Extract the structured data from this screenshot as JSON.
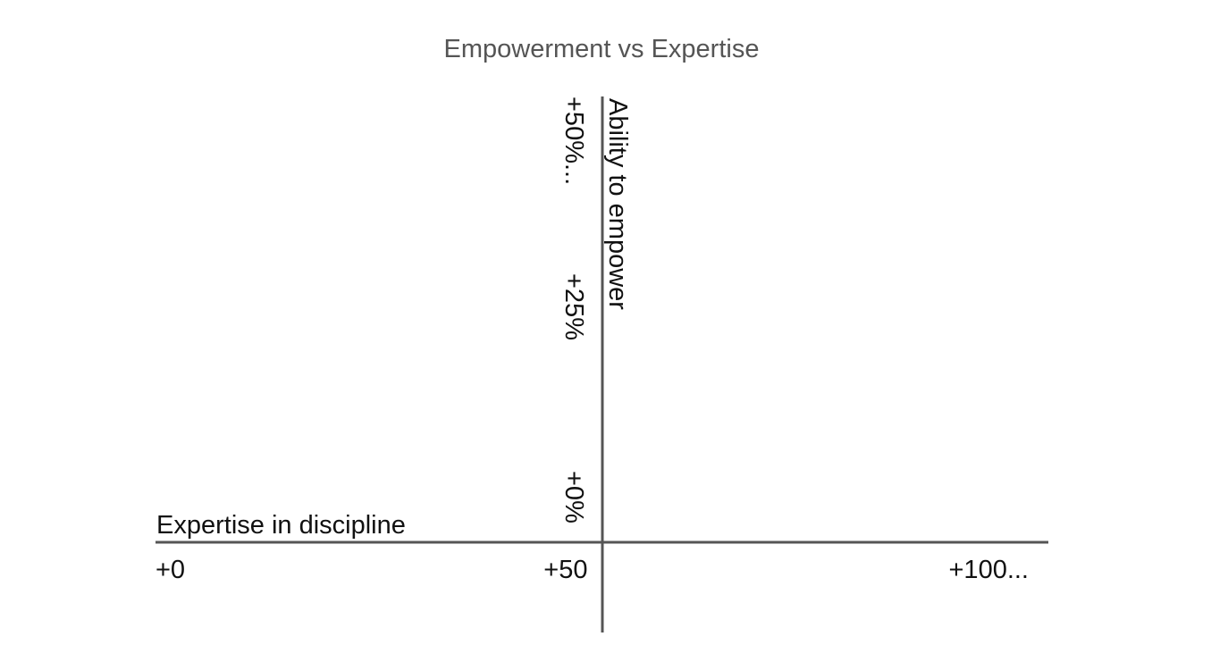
{
  "chart_data": {
    "type": "scatter",
    "title": "Empowerment vs Expertise",
    "xlabel": "Expertise in discipline",
    "ylabel": "Ability to empower",
    "xlim": [
      0,
      100
    ],
    "ylim": [
      0,
      50
    ],
    "x_ticks": [
      "+0",
      "+50",
      "+100..."
    ],
    "y_ticks": [
      "+0%",
      "+25%",
      "+50%..."
    ],
    "series": [],
    "grid": false,
    "legend": "none",
    "axis_color": "#555555",
    "title_color": "#555555",
    "text_color": "#111111"
  }
}
